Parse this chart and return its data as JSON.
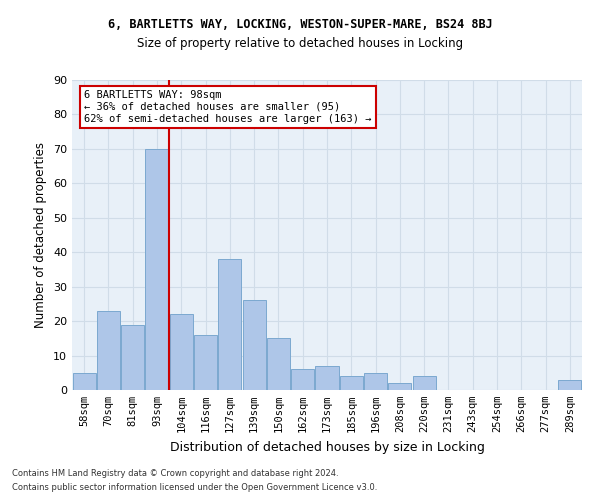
{
  "title1": "6, BARTLETTS WAY, LOCKING, WESTON-SUPER-MARE, BS24 8BJ",
  "title2": "Size of property relative to detached houses in Locking",
  "xlabel": "Distribution of detached houses by size in Locking",
  "ylabel": "Number of detached properties",
  "categories": [
    "58sqm",
    "70sqm",
    "81sqm",
    "93sqm",
    "104sqm",
    "116sqm",
    "127sqm",
    "139sqm",
    "150sqm",
    "162sqm",
    "173sqm",
    "185sqm",
    "196sqm",
    "208sqm",
    "220sqm",
    "231sqm",
    "243sqm",
    "254sqm",
    "266sqm",
    "277sqm",
    "289sqm"
  ],
  "values": [
    5,
    23,
    19,
    70,
    22,
    16,
    38,
    26,
    15,
    6,
    7,
    4,
    5,
    2,
    4,
    0,
    0,
    0,
    0,
    0,
    3
  ],
  "bar_color": "#aec6e8",
  "bar_edge_color": "#7ba8d0",
  "property_line_x": 3.5,
  "annotation_text": "6 BARTLETTS WAY: 98sqm\n← 36% of detached houses are smaller (95)\n62% of semi-detached houses are larger (163) →",
  "annotation_box_color": "#ffffff",
  "annotation_box_edge_color": "#cc0000",
  "red_line_color": "#cc0000",
  "grid_color": "#d0dce8",
  "background_color": "#e8f0f8",
  "ylim": [
    0,
    90
  ],
  "yticks": [
    0,
    10,
    20,
    30,
    40,
    50,
    60,
    70,
    80,
    90
  ],
  "footer1": "Contains HM Land Registry data © Crown copyright and database right 2024.",
  "footer2": "Contains public sector information licensed under the Open Government Licence v3.0."
}
